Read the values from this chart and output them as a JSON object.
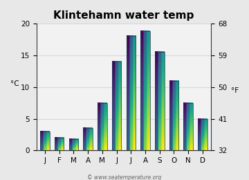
{
  "months": [
    "J",
    "F",
    "M",
    "A",
    "M",
    "J",
    "J",
    "A",
    "S",
    "O",
    "N",
    "D"
  ],
  "temps_c": [
    3.0,
    2.0,
    1.8,
    3.5,
    7.5,
    14.0,
    18.0,
    18.8,
    15.5,
    11.0,
    7.5,
    5.0
  ],
  "title": "Klintehamn water temp",
  "ylabel_left": "°C",
  "ylabel_right": "°F",
  "ylim_c": [
    0,
    20
  ],
  "yticks_c": [
    0,
    5,
    10,
    15,
    20
  ],
  "yticks_f": [
    32,
    41,
    50,
    59,
    68
  ],
  "bar_color_top": "#55ccf0",
  "bar_color_bottom": "#0a4a80",
  "bar_edge_color": "#1a3a55",
  "background_color": "#e8e8e8",
  "plot_bg_color": "#f2f2f2",
  "grid_color": "#d8d8d8",
  "watermark": "© www.seatemperature.org",
  "title_fontsize": 11,
  "label_fontsize": 7.5,
  "tick_fontsize": 7.5,
  "watermark_fontsize": 5.5
}
